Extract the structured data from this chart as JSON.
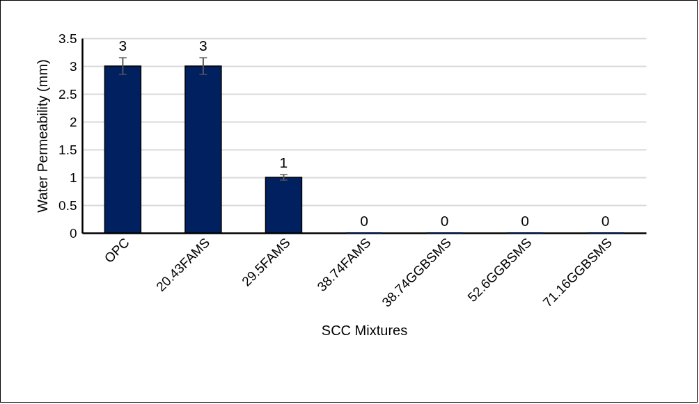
{
  "chart_data": {
    "type": "bar",
    "xlabel": "SCC Mixtures",
    "ylabel": "Water Permeability (mm)",
    "categories": [
      "OPC",
      "20.43FAMS",
      "29.5FAMS",
      "38.74FAMS",
      "38.74GGBSMS",
      "52.6GGBSMS",
      "71.16GGBSMS"
    ],
    "values": [
      3,
      3,
      1,
      0,
      0,
      0,
      0
    ],
    "errors": [
      0.15,
      0.15,
      0.05,
      null,
      null,
      null,
      null
    ],
    "color": "#002060",
    "ylim": [
      0,
      3.5
    ],
    "yticks": [
      0,
      0.5,
      1,
      1.5,
      2,
      2.5,
      3,
      3.5
    ],
    "grid": "y",
    "data_labels": true
  }
}
